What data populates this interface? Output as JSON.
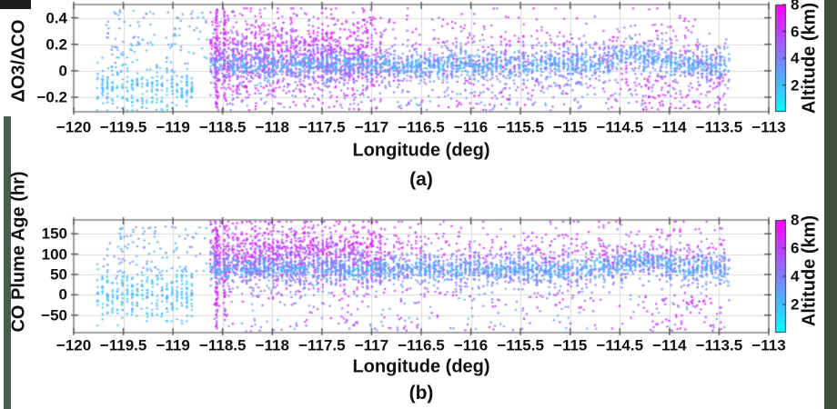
{
  "figure": {
    "background": "#ffffff",
    "text_color": "#111111",
    "frame_color": "#8a8a8a",
    "grid_color": "#d9d9d9",
    "tick_mark_color": "#555555",
    "left_edge_strip_color": "#4a5c4e",
    "right_edge_strip_color": "#42503f",
    "corner_patch_color": "#1c1c1c"
  },
  "chart_data": [
    {
      "id": "a",
      "type": "scatter",
      "caption": "(a)",
      "xlabel": "Longitude (deg)",
      "ylabel": "ΔO3/ΔCO",
      "xlim": [
        -120,
        -113
      ],
      "ylim": [
        -0.31,
        0.5
      ],
      "xticks": [
        -120,
        -119.5,
        -119,
        -118.5,
        -118,
        -117.5,
        -117,
        -116.5,
        -116,
        -115.5,
        -115,
        -114.5,
        -114,
        -113.5,
        -113
      ],
      "yticks": [
        0.4,
        0.2,
        0,
        -0.2
      ],
      "grid": true,
      "legend_position": "none",
      "colorbar": {
        "label": "Altitude (km)",
        "range": [
          0,
          8
        ],
        "ticks": [
          2,
          4,
          6,
          8
        ],
        "colormap": "cool",
        "color_low": "#00ffff",
        "color_high": "#ff00ff"
      },
      "marker_color_encoding": "altitude_km",
      "clusters": [
        {
          "kind": "sparse",
          "n": 260,
          "lon": [
            -118.6,
            -113.42
          ],
          "alt": [
            2.0,
            7.5
          ],
          "y": [
            -0.3,
            -0.08
          ]
        },
        {
          "kind": "sparse",
          "n": 45,
          "lon": [
            -114.3,
            -113.45
          ],
          "alt": [
            6.0,
            8.0
          ],
          "y": [
            -0.3,
            -0.05
          ]
        },
        {
          "kind": "cloud",
          "n": 1500,
          "lon": [
            -118.62,
            -113.42
          ],
          "left_frac": 0.55,
          "left_until": -116.9,
          "alt": [
            4.8,
            8.0
          ],
          "y_center": 0.12,
          "y_sigma": 0.16,
          "y_clip": [
            -0.29,
            0.47
          ],
          "stripe_frac": 0.45,
          "stripe_spacing": 0.045
        },
        {
          "kind": "column",
          "lon": -118.56,
          "n": 65,
          "alt": [
            5.5,
            8.0
          ],
          "y": [
            -0.29,
            0.47
          ]
        },
        {
          "kind": "column",
          "lon": -118.48,
          "n": 35,
          "alt": [
            5.5,
            8.0
          ],
          "y": [
            -0.24,
            0.45
          ]
        },
        {
          "kind": "band",
          "n": 2500,
          "lon": [
            -118.62,
            -113.4
          ],
          "alt": [
            2.0,
            5.0
          ],
          "y_center": 0.045,
          "bump": {
            "center": -114.35,
            "amp": 0.07,
            "width": 0.25
          },
          "sigma_base": 0.03,
          "sigma_alt": 0.09,
          "stripe_frac": 0.55,
          "stripe_spacing": 0.045,
          "y_clip": [
            -0.29,
            0.45
          ]
        },
        {
          "kind": "stripe_field",
          "lon_start": -119.76,
          "lon_end": -118.78,
          "spacing": 0.05,
          "pts_min": 8,
          "pts_max": 20,
          "alt": [
            1.3,
            3.0
          ],
          "y_center": -0.13,
          "y_sigma": 0.085,
          "y_clip": [
            -0.3,
            0.1
          ]
        },
        {
          "kind": "sparse",
          "n": 110,
          "lon": [
            -119.7,
            -118.65
          ],
          "alt": [
            1.6,
            4.2
          ],
          "y": [
            -0.02,
            0.46
          ]
        }
      ]
    },
    {
      "id": "b",
      "type": "scatter",
      "caption": "(b)",
      "xlabel": "Longitude (deg)",
      "ylabel": "CO Plume Age (hr)",
      "xlim": [
        -120,
        -113
      ],
      "ylim": [
        -93,
        184
      ],
      "xticks": [
        -120,
        -119.5,
        -119,
        -118.5,
        -118,
        -117.5,
        -117,
        -116.5,
        -116,
        -115.5,
        -115,
        -114.5,
        -114,
        -113.5,
        -113
      ],
      "yticks": [
        150,
        100,
        50,
        0,
        -50
      ],
      "grid": true,
      "legend_position": "none",
      "colorbar": {
        "label": "Altitude (km)",
        "range": [
          0,
          8
        ],
        "ticks": [
          2,
          4,
          6,
          8
        ],
        "colormap": "cool",
        "color_low": "#00ffff",
        "color_high": "#ff00ff"
      },
      "marker_color_encoding": "altitude_km",
      "clusters": [
        {
          "kind": "sparse",
          "n": 260,
          "lon": [
            -118.6,
            -113.42
          ],
          "alt": [
            2.0,
            7.5
          ],
          "y": [
            -90,
            10
          ]
        },
        {
          "kind": "sparse",
          "n": 45,
          "lon": [
            -114.3,
            -113.45
          ],
          "alt": [
            6.0,
            8.0
          ],
          "y": [
            -90,
            0
          ]
        },
        {
          "kind": "cloud",
          "n": 1500,
          "lon": [
            -118.62,
            -113.42
          ],
          "left_frac": 0.55,
          "left_until": -116.9,
          "alt": [
            4.8,
            8.0
          ],
          "y_center": 100,
          "y_sigma": 42,
          "y_clip": [
            -85,
            180
          ],
          "stripe_frac": 0.45,
          "stripe_spacing": 0.045
        },
        {
          "kind": "column",
          "lon": -118.56,
          "n": 65,
          "alt": [
            5.5,
            8.0
          ],
          "y": [
            -85,
            178
          ]
        },
        {
          "kind": "column",
          "lon": -118.48,
          "n": 35,
          "alt": [
            5.5,
            8.0
          ],
          "y": [
            -70,
            170
          ]
        },
        {
          "kind": "band",
          "n": 2500,
          "lon": [
            -118.62,
            -113.4
          ],
          "alt": [
            2.0,
            5.0
          ],
          "y_center": 62,
          "bump": {
            "center": -114.3,
            "amp": 22,
            "width": 0.3
          },
          "sigma_base": 10,
          "sigma_alt": 26,
          "stripe_frac": 0.55,
          "stripe_spacing": 0.045,
          "y_clip": [
            -85,
            175
          ]
        },
        {
          "kind": "stripe_field",
          "lon_start": -119.76,
          "lon_end": -118.78,
          "spacing": 0.05,
          "pts_min": 8,
          "pts_max": 20,
          "alt": [
            1.3,
            3.0
          ],
          "y_center": 0,
          "y_sigma": 32,
          "y_clip": [
            -88,
            75
          ]
        },
        {
          "kind": "sparse",
          "n": 110,
          "lon": [
            -119.7,
            -118.65
          ],
          "alt": [
            1.6,
            4.2
          ],
          "y": [
            40,
            168
          ]
        }
      ]
    }
  ]
}
